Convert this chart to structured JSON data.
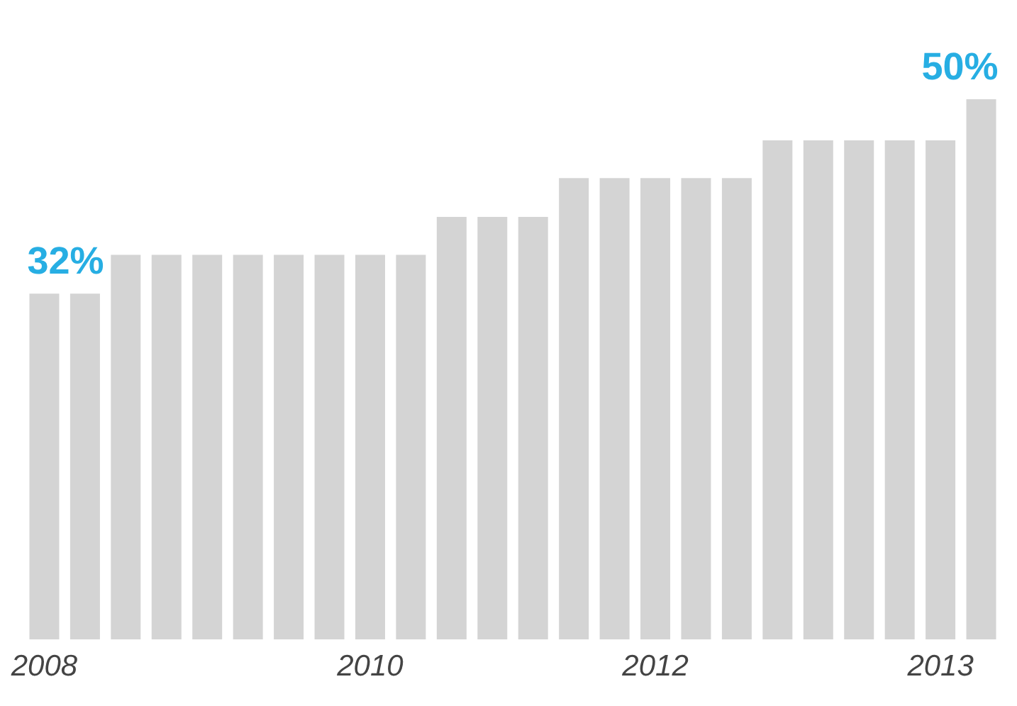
{
  "chart_data": {
    "type": "bar",
    "color": "#d4d4d4",
    "categories": [
      "2008",
      null,
      null,
      null,
      null,
      null,
      null,
      null,
      "2010",
      null,
      null,
      null,
      null,
      null,
      null,
      "2012",
      null,
      null,
      null,
      null,
      null,
      null,
      "2013",
      null
    ],
    "values": [
      32,
      32,
      35.6,
      35.6,
      35.6,
      35.6,
      35.6,
      35.6,
      35.6,
      35.6,
      39.1,
      39.1,
      39.1,
      42.7,
      42.7,
      42.7,
      42.7,
      42.7,
      46.2,
      46.2,
      46.2,
      46.2,
      46.2,
      50
    ],
    "value_labels": [
      "32%",
      null,
      null,
      null,
      null,
      null,
      null,
      null,
      null,
      null,
      null,
      null,
      null,
      null,
      null,
      null,
      null,
      null,
      null,
      null,
      null,
      null,
      null,
      "50%"
    ]
  }
}
